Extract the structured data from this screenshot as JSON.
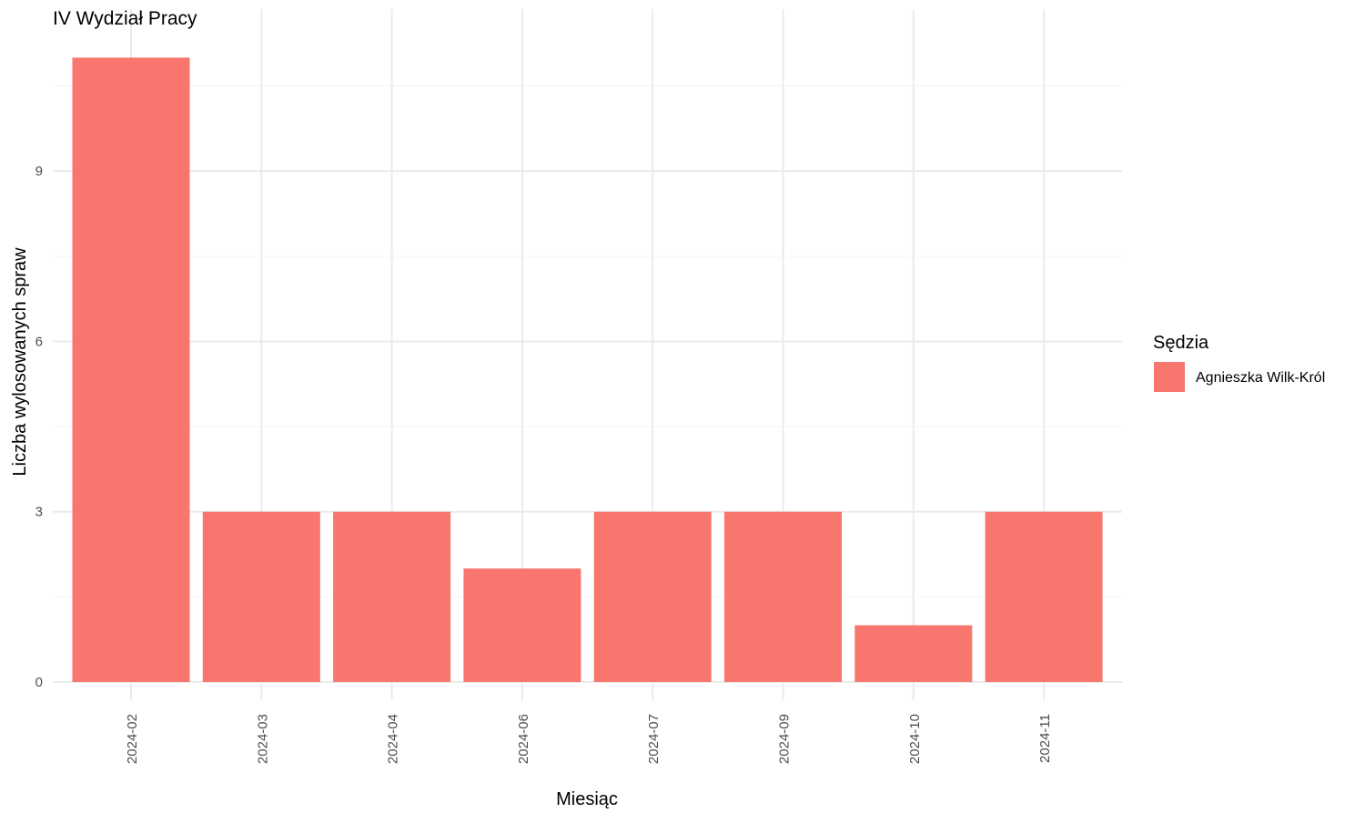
{
  "chart_data": {
    "type": "bar",
    "title": "IV Wydział Pracy",
    "xlabel": "Miesiąc",
    "ylabel": "Liczba wylosowanych spraw",
    "categories": [
      "2024-02",
      "2024-03",
      "2024-04",
      "2024-06",
      "2024-07",
      "2024-09",
      "2024-10",
      "2024-11"
    ],
    "series": [
      {
        "name": "Agnieszka Wilk-Król",
        "values": [
          11,
          3,
          3,
          2,
          3,
          3,
          1,
          3
        ],
        "color": "#f8766d"
      }
    ],
    "ylim": [
      0,
      11.55
    ],
    "yticks": [
      0,
      3,
      6,
      9
    ],
    "grid": true,
    "legend": {
      "title": "Sędzia",
      "position": "right"
    }
  }
}
